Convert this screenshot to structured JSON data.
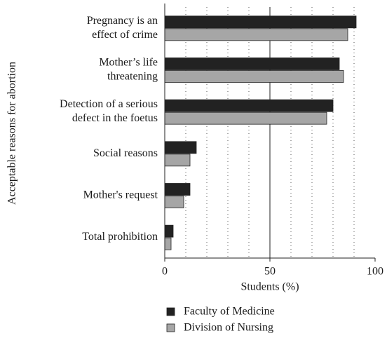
{
  "chart_data": {
    "type": "barh",
    "ylabel": "Acceptable reasons for abortion",
    "xlabel": "Students (%)",
    "categories": [
      "Pregnancy is an\neffect of crime",
      "Mother’s life\nthreatening",
      "Detection of a serious\ndefect in the foetus",
      "Social reasons",
      "Mother's request",
      "Total prohibition"
    ],
    "series": [
      {
        "name": "Faculty of Medicine",
        "color": "#222222",
        "values": [
          91,
          83,
          80,
          15,
          12,
          4
        ]
      },
      {
        "name": "Division of Nursing",
        "color": "#a6a6a6",
        "values": [
          87,
          85,
          77,
          12,
          9,
          3
        ]
      }
    ],
    "xlim": [
      0,
      100
    ],
    "xticks": [
      0,
      50,
      100
    ],
    "minor_grid": [
      10,
      20,
      30,
      40,
      60,
      70,
      80,
      90
    ]
  }
}
